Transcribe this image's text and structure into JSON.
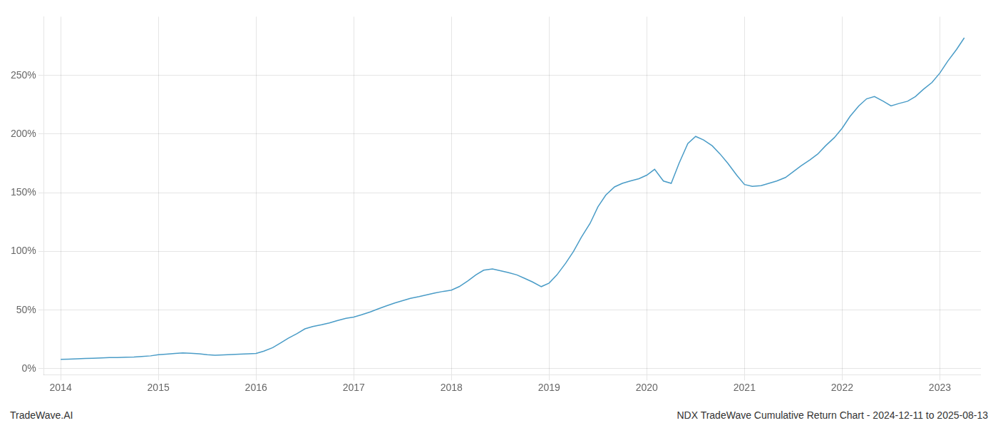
{
  "chart_data": {
    "type": "line",
    "title": "NDX TradeWave Cumulative Return Chart - 2024-12-11 to 2025-08-13",
    "annotations": [
      "TradeWave.AI"
    ],
    "color": "#4a9cc7",
    "x": [
      2014.0,
      2014.08,
      2014.17,
      2014.25,
      2014.33,
      2014.42,
      2014.5,
      2014.58,
      2014.67,
      2014.75,
      2014.83,
      2014.92,
      2015.0,
      2015.08,
      2015.17,
      2015.25,
      2015.33,
      2015.42,
      2015.5,
      2015.58,
      2015.67,
      2015.75,
      2015.83,
      2015.92,
      2016.0,
      2016.08,
      2016.17,
      2016.25,
      2016.33,
      2016.42,
      2016.5,
      2016.58,
      2016.67,
      2016.75,
      2016.83,
      2016.92,
      2017.0,
      2017.08,
      2017.17,
      2017.25,
      2017.33,
      2017.42,
      2017.5,
      2017.58,
      2017.67,
      2017.75,
      2017.83,
      2017.92,
      2018.0,
      2018.08,
      2018.17,
      2018.25,
      2018.33,
      2018.42,
      2018.5,
      2018.58,
      2018.67,
      2018.75,
      2018.83,
      2018.92,
      2019.0,
      2019.08,
      2019.17,
      2019.25,
      2019.33,
      2019.42,
      2019.5,
      2019.58,
      2019.67,
      2019.75,
      2019.83,
      2019.92,
      2020.0,
      2020.08,
      2020.17,
      2020.25,
      2020.33,
      2020.42,
      2020.5,
      2020.58,
      2020.67,
      2020.75,
      2020.83,
      2020.92,
      2021.0,
      2021.08,
      2021.17,
      2021.25,
      2021.33,
      2021.42,
      2021.5,
      2021.58,
      2021.67,
      2021.75,
      2021.83,
      2021.92,
      2022.0,
      2022.08,
      2022.17,
      2022.25,
      2022.33,
      2022.42,
      2022.5,
      2022.58,
      2022.67,
      2022.75,
      2022.83,
      2022.92,
      2023.0,
      2023.08,
      2023.17,
      2023.25
    ],
    "values": [
      8,
      8.2,
      8.5,
      8.8,
      9.0,
      9.2,
      9.5,
      9.6,
      9.8,
      10.0,
      10.5,
      11.0,
      12.0,
      12.5,
      13.0,
      13.5,
      13.2,
      12.8,
      12.0,
      11.5,
      11.8,
      12.2,
      12.5,
      12.8,
      13.0,
      15.0,
      18.0,
      22.0,
      26.0,
      30.0,
      34.0,
      36.0,
      37.5,
      39.0,
      41.0,
      43.0,
      44.0,
      46.0,
      48.5,
      51.0,
      53.5,
      56.0,
      58.0,
      60.0,
      61.5,
      63.0,
      64.5,
      66.0,
      67.0,
      70.0,
      75.0,
      80.0,
      84.0,
      85.0,
      83.5,
      82.0,
      80.0,
      77.0,
      74.0,
      70.0,
      73.0,
      80.0,
      90.0,
      100.0,
      112.0,
      124.0,
      138.0,
      148.0,
      155.0,
      158.0,
      160.0,
      162.0,
      165.0,
      170.0,
      160.0,
      158.0,
      175.0,
      192.0,
      198.0,
      195.0,
      190.0,
      183.0,
      175.0,
      165.0,
      157.0,
      155.5,
      156.0,
      158.0,
      160.0,
      163.0,
      168.0,
      173.0,
      178.0,
      183.0,
      190.0,
      197.0,
      205.0,
      215.0,
      224.0,
      230.0,
      232.0,
      228.0,
      224.0,
      226.0,
      228.0,
      232.0,
      238.0,
      244.0,
      252.0,
      262.0,
      272.0,
      282.0
    ],
    "xlim": [
      2013.83,
      2023.42
    ],
    "xticks": [
      2014,
      2015,
      2016,
      2017,
      2018,
      2019,
      2020,
      2021,
      2022,
      2023
    ],
    "ylim": [
      -5,
      300
    ],
    "yticks": [
      {
        "value": 0,
        "label": "0%"
      },
      {
        "value": 50,
        "label": "50%"
      },
      {
        "value": 100,
        "label": "100%"
      },
      {
        "value": 150,
        "label": "150%"
      },
      {
        "value": 200,
        "label": "200%"
      },
      {
        "value": 250,
        "label": "250%"
      }
    ],
    "grid": true
  }
}
